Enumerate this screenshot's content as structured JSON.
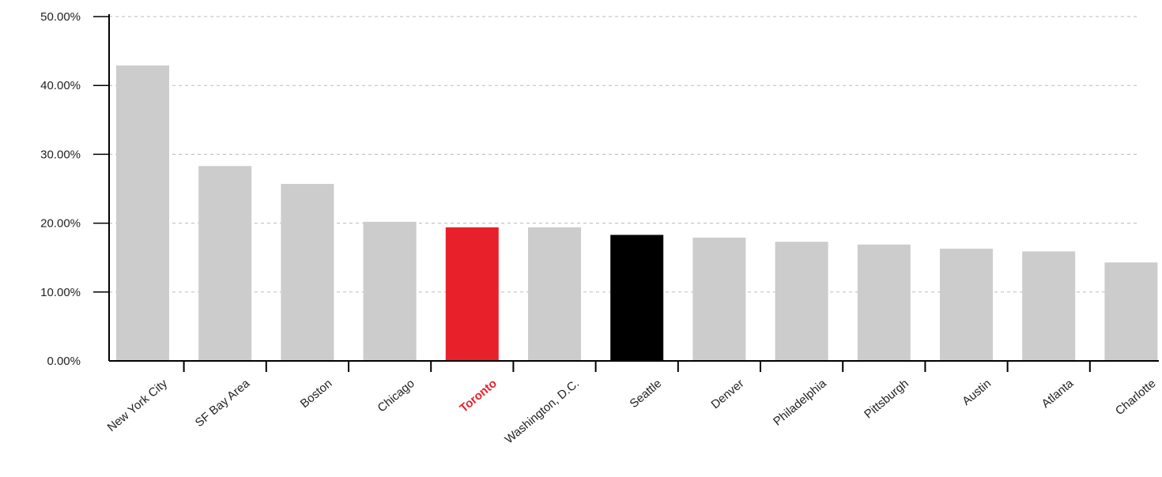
{
  "chart_data": {
    "type": "bar",
    "title": "",
    "xlabel": "",
    "ylabel": "",
    "ylim": [
      0,
      50
    ],
    "yticks": [
      0,
      10,
      20,
      30,
      40,
      50
    ],
    "ytick_labels": [
      "0.00%",
      "10.00%",
      "20.00%",
      "30.00%",
      "40.00%",
      "50.00%"
    ],
    "grid": "horizontal dashed",
    "categories": [
      "New York City",
      "SF Bay Area",
      "Boston",
      "Chicago",
      "Toronto",
      "Washington, D.C.",
      "Seattle",
      "Denver",
      "Philadelphia",
      "Pittsburgh",
      "Austin",
      "Atlanta",
      "Charlotte"
    ],
    "values": [
      42.9,
      28.3,
      25.7,
      20.2,
      19.4,
      19.4,
      18.3,
      17.9,
      17.3,
      16.9,
      16.3,
      15.9,
      14.3
    ],
    "colors": {
      "default": "#cccccc",
      "highlight": "#e8202a",
      "secondary": "#000000",
      "highlight_label": "#e8202a",
      "grid": "#bbbbbb",
      "axis": "#000000"
    },
    "highlight_category": "Toronto",
    "secondary_category": "Seattle"
  }
}
